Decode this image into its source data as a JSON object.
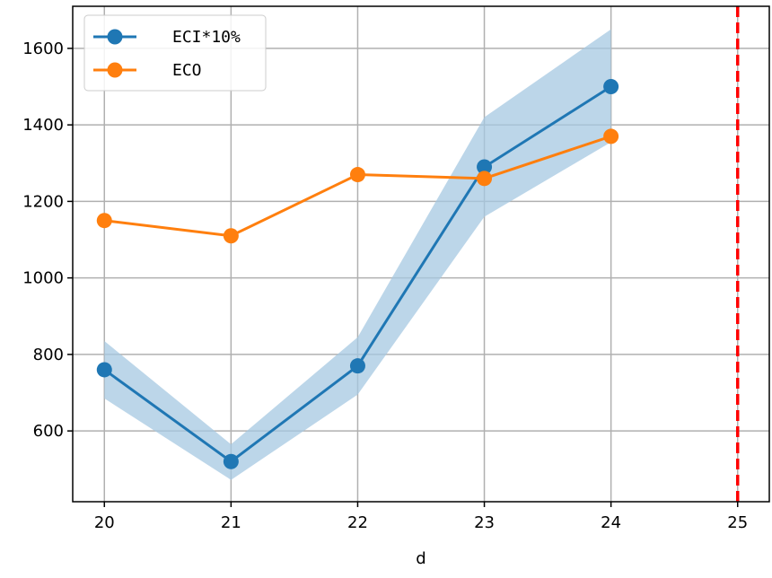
{
  "chart_data": {
    "type": "line",
    "xlabel": "d",
    "ylabel": "",
    "title": "",
    "xlim": [
      19.75,
      25.25
    ],
    "ylim": [
      415,
      1710
    ],
    "x_ticks": [
      20,
      21,
      22,
      23,
      24,
      25
    ],
    "y_ticks": [
      600,
      800,
      1000,
      1200,
      1400,
      1600
    ],
    "grid": true,
    "legend_position": "top-left",
    "series": [
      {
        "name": "ECI*10%",
        "color": "#1f77b4",
        "x": [
          20,
          21,
          22,
          23,
          24
        ],
        "y": [
          760,
          520,
          770,
          1290,
          1500
        ],
        "band_upper": [
          835,
          565,
          845,
          1420,
          1650
        ],
        "band_lower": [
          685,
          472,
          695,
          1160,
          1355
        ],
        "band_color": "#a6c8e2"
      },
      {
        "name": "ECO",
        "color": "#ff7f0e",
        "x": [
          20,
          21,
          22,
          23,
          24
        ],
        "y": [
          1150,
          1110,
          1270,
          1260,
          1370
        ]
      }
    ],
    "vertical_line": {
      "x": 25,
      "color": "#ff0000",
      "style": "dashed"
    }
  }
}
